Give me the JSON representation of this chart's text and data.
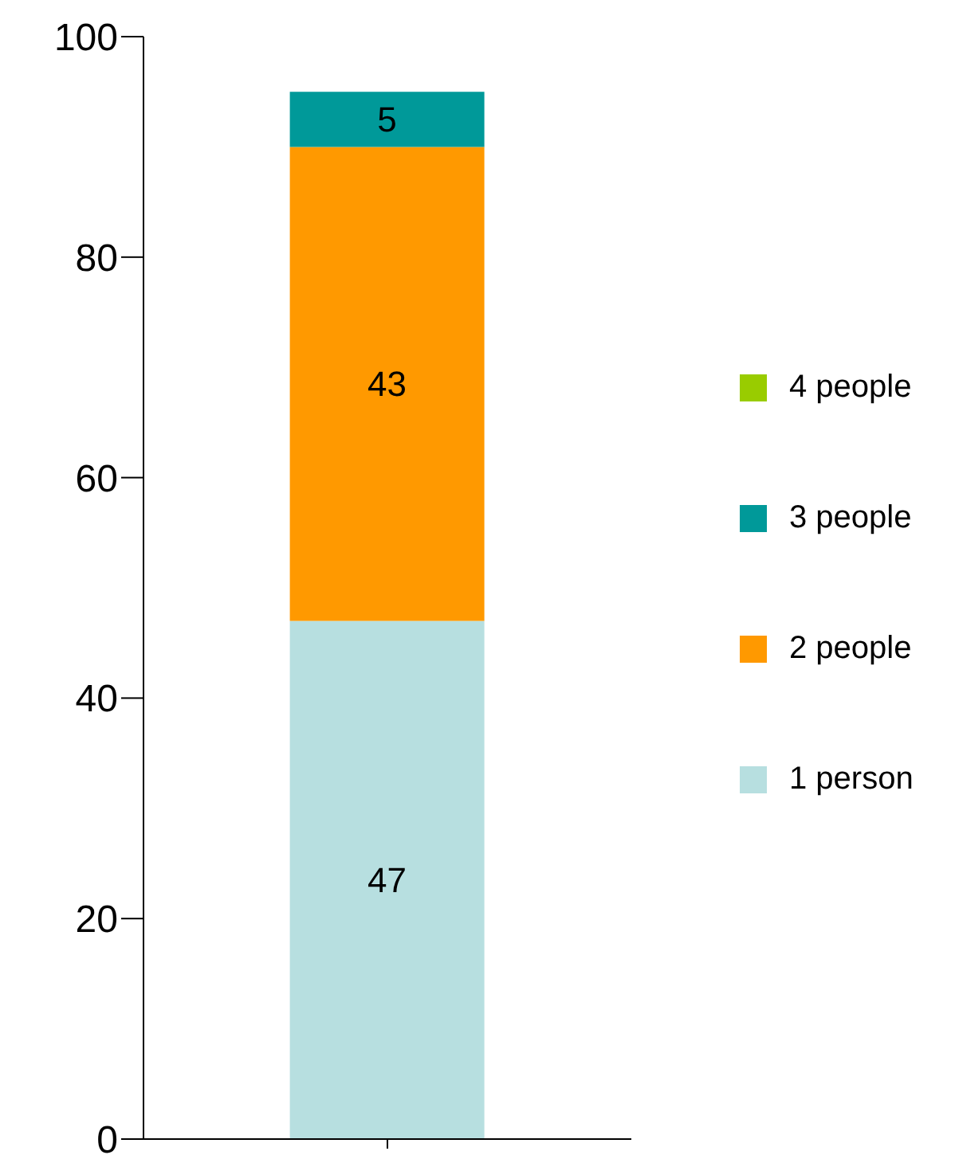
{
  "chart_data": {
    "type": "bar",
    "stacked": true,
    "categories": [
      null
    ],
    "series": [
      {
        "name": "1 person",
        "color": "#b7dfe0",
        "values": [
          47
        ],
        "value_labels": [
          "47"
        ]
      },
      {
        "name": "2 people",
        "color": "#ff9900",
        "values": [
          43
        ],
        "value_labels": [
          "43"
        ]
      },
      {
        "name": "3 people",
        "color": "#009999",
        "values": [
          5
        ],
        "value_labels": [
          "5"
        ]
      },
      {
        "name": "4 people",
        "color": "#99cc00",
        "values": [
          0
        ],
        "value_labels": [
          null
        ]
      }
    ],
    "ylim": [
      0,
      100
    ],
    "yticks": [
      0,
      20,
      40,
      60,
      80,
      100
    ],
    "grid": false,
    "legend": "right"
  }
}
